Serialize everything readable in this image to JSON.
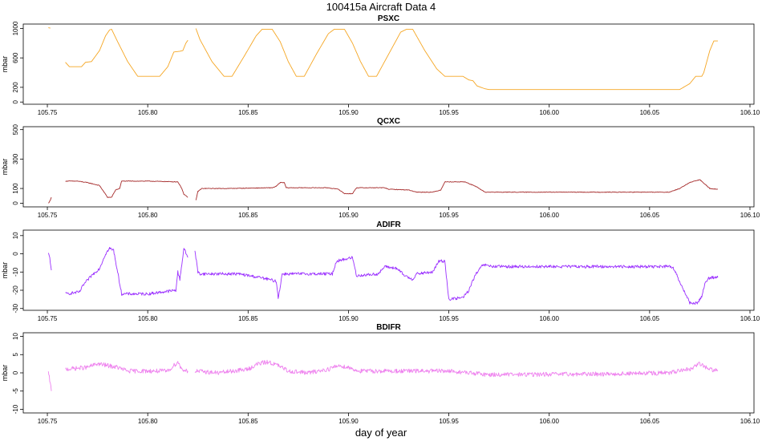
{
  "figure": {
    "title": "100415a   Aircraft Data 4",
    "xlabel": "day of year"
  },
  "chart_data": [
    {
      "type": "line",
      "title": "PSXC",
      "ylabel": "mbar",
      "color": "#f5a623",
      "xlim": [
        105.738,
        106.102
      ],
      "ylim": [
        -30,
        1060
      ],
      "xticks": [
        105.75,
        105.8,
        105.85,
        105.9,
        105.95,
        106.0,
        106.05,
        106.1
      ],
      "xtick_labels": [
        "105.75",
        "105.80",
        "105.85",
        "105.90",
        "105.95",
        "106.00",
        "106.05",
        "106.10"
      ],
      "yticks": [
        0,
        200,
        600,
        1000
      ],
      "ytick_labels": [
        "0",
        "200",
        "600",
        "1000"
      ],
      "noise": 0,
      "segments": [
        [
          [
            105.7505,
            1010
          ],
          [
            105.7515,
            1005
          ]
        ],
        [
          [
            105.759,
            540
          ],
          [
            105.761,
            480
          ],
          [
            105.767,
            480
          ],
          [
            105.769,
            540
          ],
          [
            105.772,
            550
          ],
          [
            105.776,
            700
          ],
          [
            105.779,
            900
          ],
          [
            105.781,
            980
          ],
          [
            105.782,
            990
          ],
          [
            105.785,
            820
          ],
          [
            105.79,
            550
          ],
          [
            105.795,
            350
          ],
          [
            105.806,
            350
          ],
          [
            105.81,
            480
          ],
          [
            105.813,
            680
          ],
          [
            105.816,
            690
          ],
          [
            105.8175,
            700
          ],
          [
            105.819,
            800
          ],
          [
            105.82,
            840
          ]
        ],
        [
          [
            105.824,
            1000
          ],
          [
            105.826,
            850
          ],
          [
            105.832,
            550
          ],
          [
            105.838,
            350
          ],
          [
            105.842,
            350
          ],
          [
            105.848,
            620
          ],
          [
            105.854,
            900
          ],
          [
            105.857,
            990
          ],
          [
            105.862,
            990
          ],
          [
            105.866,
            820
          ],
          [
            105.87,
            550
          ],
          [
            105.874,
            350
          ],
          [
            105.878,
            350
          ],
          [
            105.884,
            650
          ],
          [
            105.89,
            930
          ],
          [
            105.893,
            990
          ],
          [
            105.898,
            990
          ],
          [
            105.902,
            800
          ],
          [
            105.906,
            550
          ],
          [
            105.91,
            350
          ],
          [
            105.914,
            350
          ],
          [
            105.92,
            650
          ],
          [
            105.926,
            950
          ],
          [
            105.929,
            990
          ],
          [
            105.932,
            990
          ],
          [
            105.938,
            700
          ],
          [
            105.944,
            450
          ],
          [
            105.948,
            350
          ],
          [
            105.957,
            350
          ],
          [
            105.96,
            300
          ],
          [
            105.962,
            290
          ],
          [
            105.964,
            220
          ],
          [
            105.968,
            180
          ],
          [
            105.97,
            170
          ],
          [
            106.065,
            170
          ],
          [
            106.07,
            250
          ],
          [
            106.073,
            350
          ],
          [
            106.076,
            350
          ],
          [
            106.077,
            400
          ],
          [
            106.08,
            700
          ],
          [
            106.082,
            830
          ],
          [
            106.084,
            830
          ]
        ]
      ]
    },
    {
      "type": "line",
      "title": "QCXC",
      "ylabel": "mbar",
      "color": "#a52a2a",
      "xlim": [
        105.738,
        106.102
      ],
      "ylim": [
        -25,
        520
      ],
      "xticks": [
        105.75,
        105.8,
        105.85,
        105.9,
        105.95,
        106.0,
        106.05,
        106.1
      ],
      "xtick_labels": [
        "105.75",
        "105.80",
        "105.85",
        "105.90",
        "105.95",
        "106.00",
        "106.05",
        "106.10"
      ],
      "yticks": [
        0,
        100,
        300,
        500
      ],
      "ytick_labels": [
        "0",
        "100",
        "300",
        "500"
      ],
      "noise": 2,
      "segments": [
        [
          [
            105.7505,
            0
          ],
          [
            105.7515,
            20
          ],
          [
            105.752,
            40
          ]
        ],
        [
          [
            105.759,
            150
          ],
          [
            105.765,
            150
          ],
          [
            105.77,
            140
          ],
          [
            105.776,
            120
          ],
          [
            105.778,
            80
          ],
          [
            105.78,
            40
          ],
          [
            105.782,
            40
          ],
          [
            105.784,
            90
          ],
          [
            105.786,
            100
          ],
          [
            105.787,
            150
          ],
          [
            105.8,
            150
          ],
          [
            105.815,
            145
          ],
          [
            105.817,
            100
          ],
          [
            105.818,
            60
          ],
          [
            105.82,
            40
          ]
        ],
        [
          [
            105.824,
            20
          ],
          [
            105.825,
            80
          ],
          [
            105.827,
            100
          ],
          [
            105.84,
            100
          ],
          [
            105.862,
            105
          ],
          [
            105.864,
            115
          ],
          [
            105.866,
            140
          ],
          [
            105.868,
            140
          ],
          [
            105.869,
            105
          ],
          [
            105.89,
            105
          ],
          [
            105.892,
            100
          ],
          [
            105.895,
            95
          ],
          [
            105.898,
            65
          ],
          [
            105.902,
            65
          ],
          [
            105.904,
            105
          ],
          [
            105.918,
            105
          ],
          [
            105.92,
            95
          ],
          [
            105.93,
            90
          ],
          [
            105.934,
            75
          ],
          [
            105.942,
            75
          ],
          [
            105.946,
            90
          ],
          [
            105.948,
            145
          ],
          [
            105.958,
            145
          ],
          [
            105.964,
            110
          ],
          [
            105.968,
            75
          ],
          [
            106.06,
            75
          ],
          [
            106.065,
            100
          ],
          [
            106.07,
            140
          ],
          [
            106.075,
            160
          ],
          [
            106.078,
            125
          ],
          [
            106.08,
            100
          ],
          [
            106.084,
            95
          ]
        ]
      ]
    },
    {
      "type": "line",
      "title": "ADIFR",
      "ylabel": "mbar",
      "color": "#9b30ff",
      "xlim": [
        105.738,
        106.102
      ],
      "ylim": [
        -31,
        13
      ],
      "xticks": [
        105.75,
        105.8,
        105.85,
        105.9,
        105.95,
        106.0,
        106.05,
        106.1
      ],
      "xtick_labels": [
        "105.75",
        "105.80",
        "105.85",
        "105.90",
        "105.95",
        "106.00",
        "106.05",
        "106.10"
      ],
      "yticks": [
        -30,
        -20,
        -10,
        0,
        10
      ],
      "ytick_labels": [
        "-30",
        "-20",
        "-10",
        "0",
        "10"
      ],
      "noise": 0.8,
      "segments": [
        [
          [
            105.7505,
            0
          ],
          [
            105.7512,
            -2
          ],
          [
            105.752,
            -9
          ]
        ],
        [
          [
            105.759,
            -22
          ],
          [
            105.766,
            -21
          ],
          [
            105.768,
            -17
          ],
          [
            105.772,
            -12
          ],
          [
            105.776,
            -8
          ],
          [
            105.779,
            0
          ],
          [
            105.781,
            3
          ],
          [
            105.783,
            2
          ],
          [
            105.785,
            -10
          ],
          [
            105.787,
            -22
          ],
          [
            105.8,
            -22
          ],
          [
            105.814,
            -20
          ],
          [
            105.815,
            -10
          ],
          [
            105.816,
            -14
          ],
          [
            105.818,
            3
          ],
          [
            105.82,
            -2
          ]
        ],
        [
          [
            105.8235,
            2
          ],
          [
            105.825,
            -10
          ],
          [
            105.826,
            -11
          ],
          [
            105.845,
            -11
          ],
          [
            105.856,
            -13
          ],
          [
            105.864,
            -15
          ],
          [
            105.865,
            -24
          ],
          [
            105.866,
            -18
          ],
          [
            105.867,
            -11
          ],
          [
            105.88,
            -11
          ],
          [
            105.892,
            -11
          ],
          [
            105.894,
            -4
          ],
          [
            105.898,
            -3
          ],
          [
            105.902,
            -2
          ],
          [
            105.904,
            -12
          ],
          [
            105.915,
            -11
          ],
          [
            105.918,
            -7
          ],
          [
            105.924,
            -8
          ],
          [
            105.928,
            -12
          ],
          [
            105.932,
            -14
          ],
          [
            105.934,
            -11
          ],
          [
            105.942,
            -10
          ],
          [
            105.945,
            -4
          ],
          [
            105.948,
            -4
          ],
          [
            105.95,
            -25
          ],
          [
            105.957,
            -24
          ],
          [
            105.96,
            -20
          ],
          [
            105.963,
            -12
          ],
          [
            105.967,
            -6
          ],
          [
            105.972,
            -7
          ],
          [
            106.06,
            -7
          ],
          [
            106.062,
            -8
          ],
          [
            106.066,
            -18
          ],
          [
            106.068,
            -22
          ],
          [
            106.07,
            -27
          ],
          [
            106.074,
            -27
          ],
          [
            106.076,
            -23
          ],
          [
            106.078,
            -15
          ],
          [
            106.08,
            -13
          ],
          [
            106.084,
            -13
          ]
        ]
      ]
    },
    {
      "type": "line",
      "title": "BDIFR",
      "ylabel": "mbar",
      "color": "#ee82ee",
      "xlim": [
        105.738,
        106.102
      ],
      "ylim": [
        -11,
        11
      ],
      "xticks": [
        105.75,
        105.8,
        105.85,
        105.9,
        105.95,
        106.0,
        106.05,
        106.1
      ],
      "xtick_labels": [
        "105.75",
        "105.80",
        "105.85",
        "105.90",
        "105.95",
        "106.00",
        "106.05",
        "106.10"
      ],
      "yticks": [
        -10,
        -5,
        0,
        5,
        10
      ],
      "ytick_labels": [
        "-10",
        "-5",
        "0",
        "5",
        "10"
      ],
      "noise": 0.6,
      "segments": [
        [
          [
            105.7505,
            0
          ],
          [
            105.7512,
            -2
          ],
          [
            105.752,
            -5
          ]
        ],
        [
          [
            105.759,
            1
          ],
          [
            105.77,
            1.5
          ],
          [
            105.775,
            2.5
          ],
          [
            105.78,
            2
          ],
          [
            105.785,
            1.5
          ],
          [
            105.79,
            0.5
          ],
          [
            105.8,
            0.5
          ],
          [
            105.81,
            0.5
          ],
          [
            105.815,
            3
          ],
          [
            105.817,
            1
          ],
          [
            105.82,
            0.5
          ]
        ],
        [
          [
            105.8235,
            0.5
          ],
          [
            105.835,
            0
          ],
          [
            105.85,
            1
          ],
          [
            105.855,
            2.5
          ],
          [
            105.86,
            3
          ],
          [
            105.865,
            2
          ],
          [
            105.87,
            0.5
          ],
          [
            105.88,
            0
          ],
          [
            105.89,
            1
          ],
          [
            105.895,
            2
          ],
          [
            105.9,
            1.5
          ],
          [
            105.905,
            0.5
          ],
          [
            105.92,
            0.5
          ],
          [
            105.935,
            0.5
          ],
          [
            105.95,
            0.5
          ],
          [
            105.97,
            -0.5
          ],
          [
            106.03,
            -0.3
          ],
          [
            106.06,
            0
          ],
          [
            106.07,
            1
          ],
          [
            106.075,
            2.5
          ],
          [
            106.08,
            1
          ],
          [
            106.084,
            0.5
          ]
        ]
      ]
    }
  ]
}
